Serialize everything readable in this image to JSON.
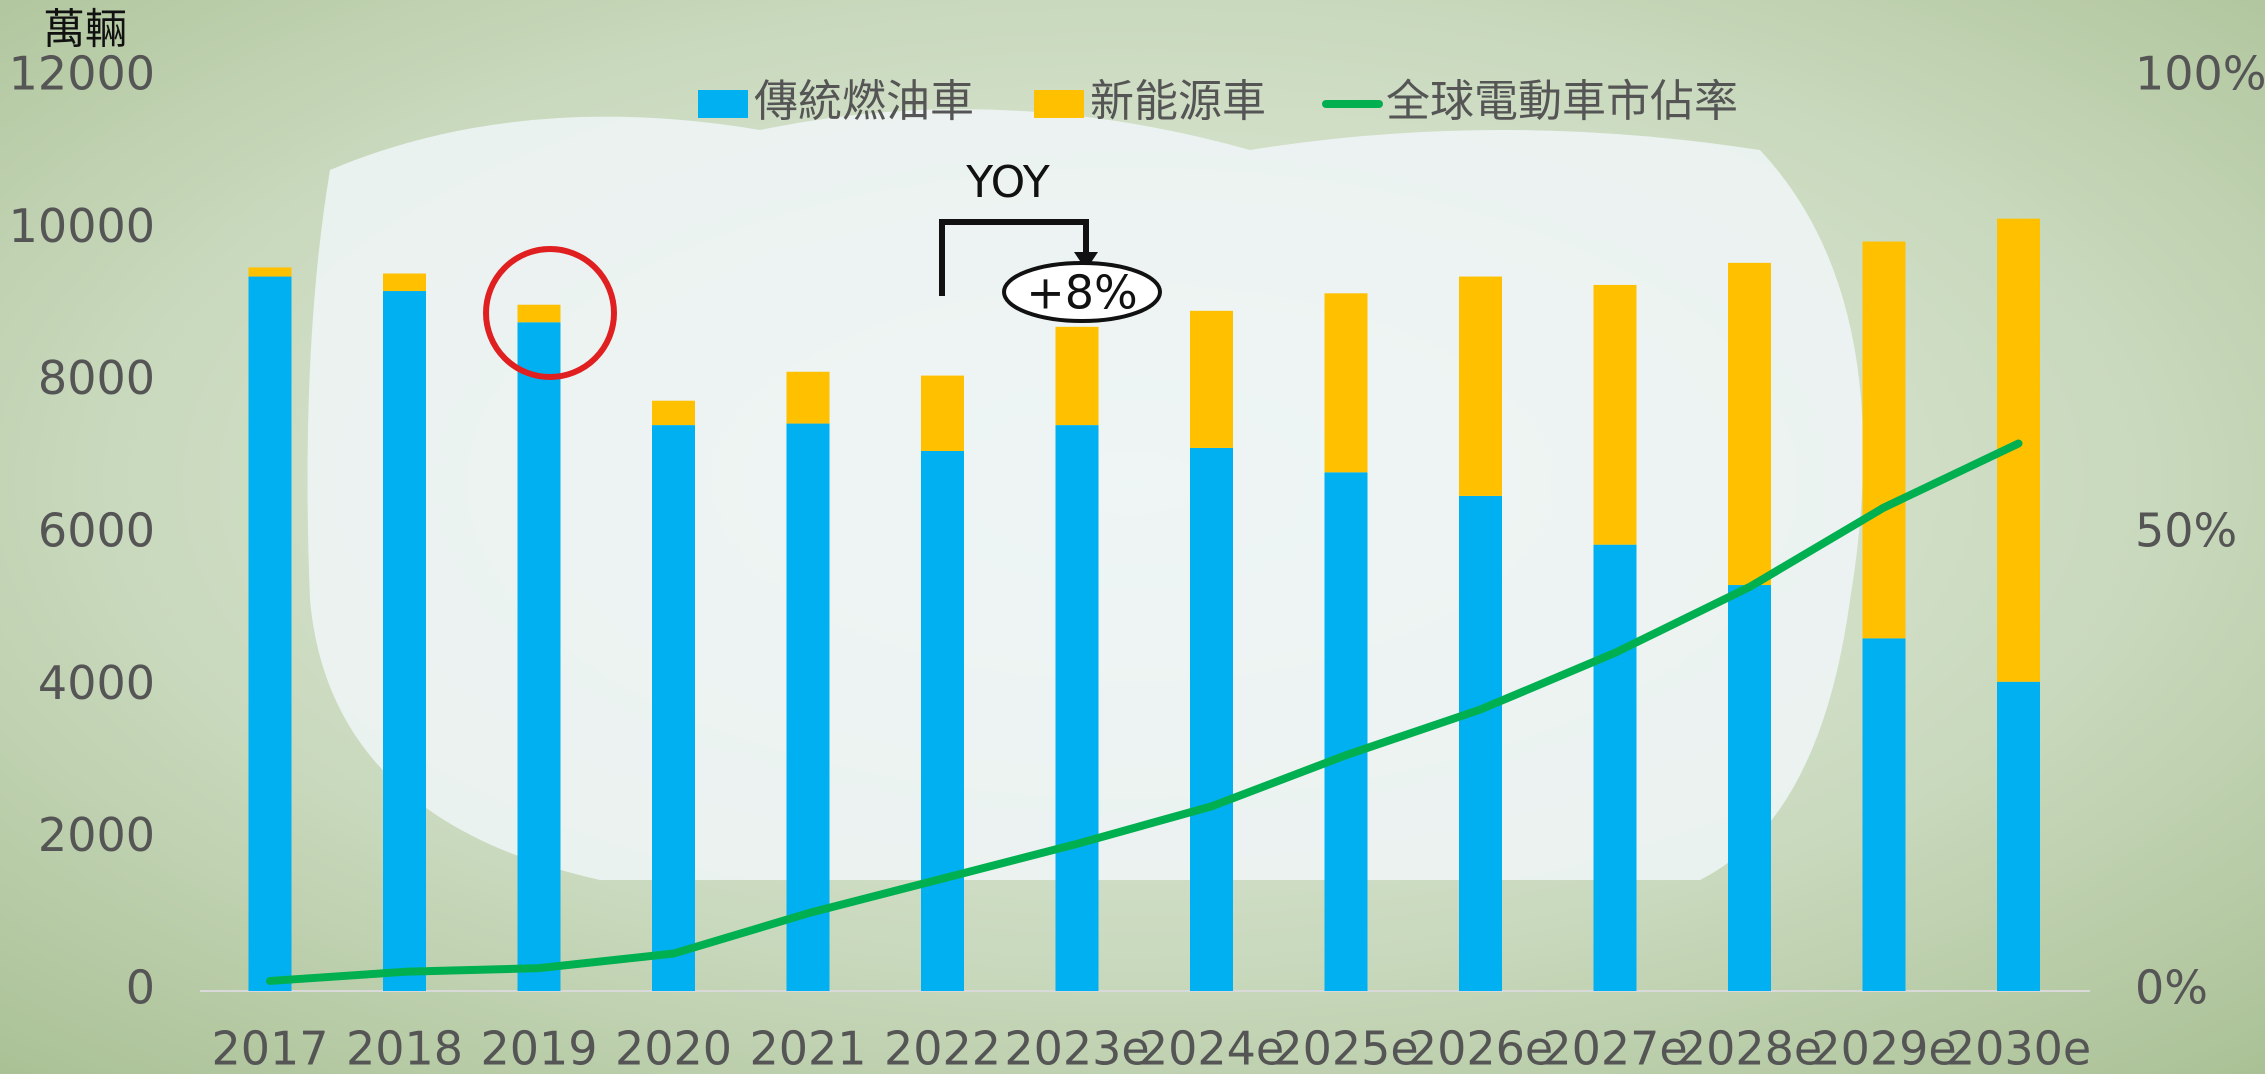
{
  "chart_data": {
    "type": "bar",
    "stacked": true,
    "y_unit_label": "萬輛",
    "annotations": [
      "YOY",
      "+8%"
    ],
    "categories": [
      "2017",
      "2018",
      "2019",
      "2020",
      "2021",
      "2022",
      "2023e",
      "2024e",
      "2025e",
      "2026e",
      "2027e",
      "2028e",
      "2029e",
      "2030e"
    ],
    "series": [
      {
        "name": "傳統燃油車",
        "type": "bar",
        "color": "#00b0f0",
        "values": [
          9380,
          9190,
          8780,
          7430,
          7450,
          7090,
          7430,
          7130,
          6810,
          6500,
          5860,
          5330,
          4630,
          4060
        ]
      },
      {
        "name": "新能源車",
        "type": "bar",
        "color": "#ffc000",
        "values": [
          120,
          230,
          230,
          320,
          680,
          990,
          1290,
          1800,
          2350,
          2880,
          3410,
          4230,
          5210,
          6080
        ]
      },
      {
        "name": "全球電動車市佔率",
        "type": "line",
        "axis": "y2",
        "color": "#00b050",
        "values": [
          1.1,
          2.1,
          2.5,
          4.1,
          8.5,
          12.3,
          16.1,
          20.2,
          25.8,
          30.8,
          37,
          44.2,
          52.9,
          59.9
        ]
      }
    ],
    "ylim": [
      0,
      12000
    ],
    "yticks": [
      0,
      2000,
      4000,
      6000,
      8000,
      10000,
      12000
    ],
    "y2lim": [
      0,
      100
    ],
    "y2ticks": [
      {
        "value": 0,
        "label": "0%"
      },
      {
        "value": 50,
        "label": "50%"
      },
      {
        "value": 100,
        "label": "100%"
      }
    ],
    "legend": "top"
  }
}
